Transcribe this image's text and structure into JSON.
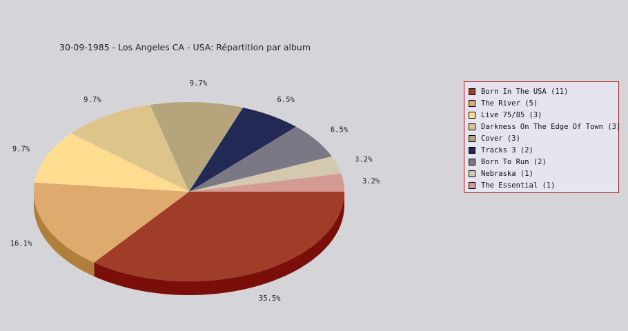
{
  "chart_data": {
    "type": "pie",
    "title": "30-09-1985 - Los Angeles CA - USA:  Répartition par album",
    "slices": [
      {
        "label": "Born In The USA",
        "count": 11,
        "percent_label": "35.5%",
        "color": "#a03d28",
        "side_color": "#7a0f0a"
      },
      {
        "label": "The River",
        "count": 5,
        "percent_label": "16.1%",
        "color": "#dfaa6e",
        "side_color": "#b07f3c"
      },
      {
        "label": "Live 75/85",
        "count": 3,
        "percent_label": "9.7%",
        "color": "#fedd91",
        "side_color": "#c9a85c"
      },
      {
        "label": "Darkness On The Edge Of Town",
        "count": 3,
        "percent_label": "9.7%",
        "color": "#dcc48a",
        "side_color": "#a8915a"
      },
      {
        "label": "Cover",
        "count": 3,
        "percent_label": "9.7%",
        "color": "#b6a47c",
        "side_color": "#857452"
      },
      {
        "label": "Tracks 3",
        "count": 2,
        "percent_label": "6.5%",
        "color": "#222955",
        "side_color": "#101530"
      },
      {
        "label": "Born To Run",
        "count": 2,
        "percent_label": "6.5%",
        "color": "#7a7885",
        "side_color": "#55535e"
      },
      {
        "label": "Nebraska",
        "count": 1,
        "percent_label": "3.2%",
        "color": "#d4c8ae",
        "side_color": "#a89c84"
      },
      {
        "label": "The Essential",
        "count": 1,
        "percent_label": "3.2%",
        "color": "#d49a94",
        "side_color": "#a5706b"
      }
    ],
    "legend_placement": "right"
  }
}
